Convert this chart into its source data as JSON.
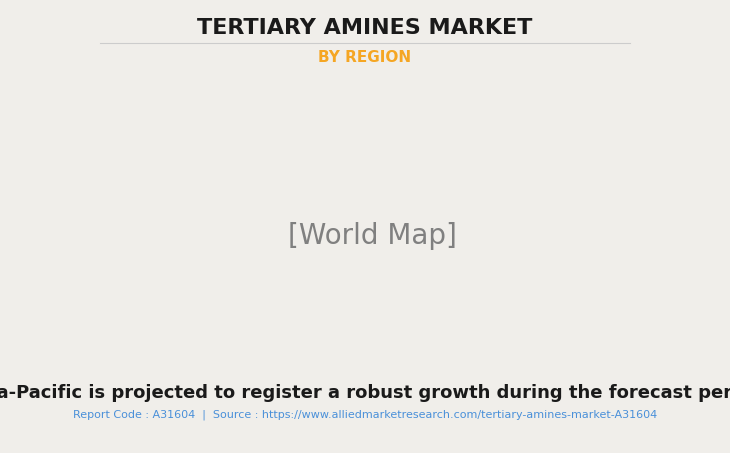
{
  "title": "TERTIARY AMINES MARKET",
  "subtitle": "BY REGION",
  "subtitle_color": "#F5A623",
  "title_color": "#1a1a1a",
  "bg_color": "#f0eeea",
  "main_text": "Asia-Pacific is projected to register a robust growth during the forecast period",
  "footer_text": "Report Code : A31604  |  Source : https://www.alliedmarketresearch.com/tertiary-amines-market-A31604",
  "footer_color": "#4a90d9",
  "land_color": "#8fbc8f",
  "land_highlight": "#7aad7a",
  "ocean_color": "#f0eeea",
  "border_color": "#6a9fd0",
  "shadow_color": "#a0a0a0",
  "us_color": "#e8e8e8",
  "title_fontsize": 16,
  "subtitle_fontsize": 11,
  "main_text_fontsize": 13,
  "footer_fontsize": 8
}
